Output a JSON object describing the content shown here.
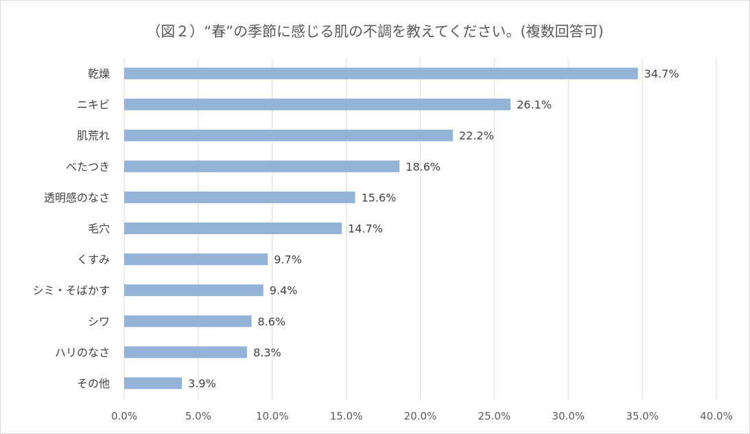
{
  "chart_data": {
    "type": "bar",
    "orientation": "horizontal",
    "title": "（図２）“春”の季節に感じる肌の不調を教えてください。(複数回答可)",
    "categories": [
      "乾燥",
      "ニキビ",
      "肌荒れ",
      "べたつき",
      "透明感のなさ",
      "毛穴",
      "くすみ",
      "シミ・そばかす",
      "シワ",
      "ハリのなさ",
      "その他"
    ],
    "values": [
      34.7,
      26.1,
      22.2,
      18.6,
      15.6,
      14.7,
      9.7,
      9.4,
      8.6,
      8.3,
      3.9
    ],
    "data_labels": [
      "34.7%",
      "26.1%",
      "22.2%",
      "18.6%",
      "15.6%",
      "14.7%",
      "9.7%",
      "9.4%",
      "8.6%",
      "8.3%",
      "3.9%"
    ],
    "xlim": [
      0,
      40
    ],
    "x_ticks": [
      0,
      5,
      10,
      15,
      20,
      25,
      30,
      35,
      40
    ],
    "x_tick_labels": [
      "0.0%",
      "5.0%",
      "10.0%",
      "15.0%",
      "20.0%",
      "25.0%",
      "30.0%",
      "35.0%",
      "40.0%"
    ],
    "xlabel": "",
    "ylabel": "",
    "grid": "vertical",
    "bar_color": "#95b3d7",
    "grid_color": "#d9d9d9"
  }
}
